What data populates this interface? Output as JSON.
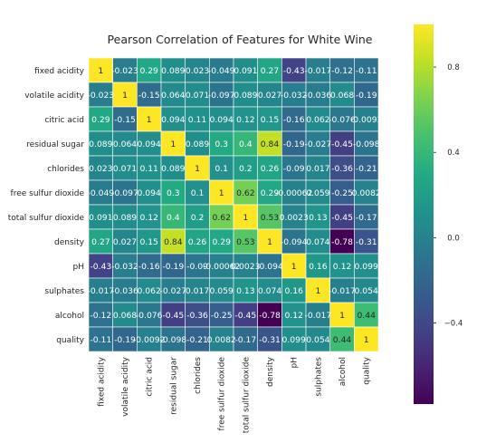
{
  "chart_data": {
    "type": "heatmap",
    "title": "Pearson Correlation of Features for White Wine",
    "labels": [
      "fixed acidity",
      "volatile acidity",
      "citric acid",
      "residual sugar",
      "chlorides",
      "free sulfur dioxide",
      "total sulfur dioxide",
      "density",
      "pH",
      "sulphates",
      "alcohol",
      "quality"
    ],
    "values": [
      [
        1,
        -0.023,
        0.29,
        0.089,
        0.023,
        -0.049,
        0.091,
        0.27,
        -0.43,
        -0.017,
        -0.12,
        -0.11
      ],
      [
        -0.023,
        1,
        -0.15,
        0.064,
        0.071,
        -0.097,
        0.089,
        0.027,
        -0.032,
        -0.036,
        0.068,
        -0.19
      ],
      [
        0.29,
        -0.15,
        1,
        0.094,
        0.11,
        0.094,
        0.12,
        0.15,
        -0.16,
        0.062,
        -0.076,
        -0.0092
      ],
      [
        0.089,
        0.064,
        0.094,
        1,
        0.089,
        0.3,
        0.4,
        0.84,
        -0.19,
        -0.027,
        -0.45,
        -0.098
      ],
      [
        0.023,
        0.071,
        0.11,
        0.089,
        1,
        0.1,
        0.2,
        0.26,
        -0.09,
        0.017,
        -0.36,
        -0.21
      ],
      [
        -0.049,
        -0.097,
        0.094,
        0.3,
        0.1,
        1,
        0.62,
        0.29,
        -0.00062,
        0.059,
        -0.25,
        0.0082
      ],
      [
        0.091,
        0.089,
        0.12,
        0.4,
        0.2,
        0.62,
        1,
        0.53,
        0.0023,
        0.13,
        -0.45,
        -0.17
      ],
      [
        0.27,
        0.027,
        0.15,
        0.84,
        0.26,
        0.29,
        0.53,
        1,
        -0.094,
        0.074,
        -0.78,
        -0.31
      ],
      [
        -0.43,
        -0.032,
        -0.16,
        -0.19,
        -0.09,
        -0.00062,
        0.0023,
        -0.094,
        1,
        0.16,
        0.12,
        0.099
      ],
      [
        -0.017,
        -0.036,
        0.062,
        -0.027,
        0.017,
        0.059,
        0.13,
        0.074,
        0.16,
        1,
        -0.017,
        0.054
      ],
      [
        -0.12,
        0.068,
        -0.076,
        -0.45,
        -0.36,
        -0.25,
        -0.45,
        -0.78,
        0.12,
        -0.017,
        1,
        0.44
      ],
      [
        -0.11,
        -0.19,
        -0.0092,
        -0.098,
        -0.21,
        0.0082,
        -0.17,
        -0.31,
        0.099,
        0.054,
        0.44,
        1
      ]
    ],
    "cell_text": [
      [
        "1",
        "-0.023",
        "0.29",
        "0.089",
        "0.023",
        "-0.049",
        "0.091",
        "0.27",
        "-0.43",
        "-0.017",
        "-0.12",
        "-0.11"
      ],
      [
        "-0.023",
        "1",
        "-0.15",
        "0.064",
        "0.071",
        "-0.097",
        "0.089",
        "0.027",
        "-0.032",
        "-0.036",
        "0.068",
        "-0.19"
      ],
      [
        "0.29",
        "-0.15",
        "1",
        "0.094",
        "0.11",
        "0.094",
        "0.12",
        "0.15",
        "-0.16",
        "0.062",
        "-0.076",
        "-0.0092"
      ],
      [
        "0.089",
        "0.064",
        "0.094",
        "1",
        "0.089",
        "0.3",
        "0.4",
        "0.84",
        "-0.19",
        "-0.027",
        "-0.45",
        "-0.098"
      ],
      [
        "0.023",
        "0.071",
        "0.11",
        "0.089",
        "1",
        "0.1",
        "0.2",
        "0.26",
        "-0.09",
        "0.017",
        "-0.36",
        "-0.21"
      ],
      [
        "-0.049",
        "-0.097",
        "0.094",
        "0.3",
        "0.1",
        "1",
        "0.62",
        "0.29",
        "-0.00062",
        "0.059",
        "-0.25",
        "0.0082"
      ],
      [
        "0.091",
        "0.089",
        "0.12",
        "0.4",
        "0.2",
        "0.62",
        "1",
        "0.53",
        "0.0023",
        "0.13",
        "-0.45",
        "-0.17"
      ],
      [
        "0.27",
        "0.027",
        "0.15",
        "0.84",
        "0.26",
        "0.29",
        "0.53",
        "1",
        "-0.094",
        "0.074",
        "-0.78",
        "-0.31"
      ],
      [
        "-0.43",
        "-0.032",
        "-0.16",
        "-0.19",
        "-0.09",
        "-0.00062",
        "0.0023",
        "-0.094",
        "1",
        "0.16",
        "0.12",
        "0.099"
      ],
      [
        "-0.017",
        "-0.036",
        "0.062",
        "-0.027",
        "0.017",
        "0.059",
        "0.13",
        "0.074",
        "0.16",
        "1",
        "-0.017",
        "0.054"
      ],
      [
        "-0.12",
        "0.068",
        "-0.076",
        "-0.45",
        "-0.36",
        "-0.25",
        "-0.45",
        "-0.78",
        "0.12",
        "-0.017",
        "1",
        "0.44"
      ],
      [
        "-0.11",
        "-0.19",
        "-0.0092",
        "-0.098",
        "-0.21",
        "0.0082",
        "-0.17",
        "-0.31",
        "0.099",
        "0.054",
        "0.44",
        "1"
      ]
    ],
    "colormap": "viridis",
    "color_range": [
      -0.78,
      1
    ],
    "colorbar_ticks": [
      {
        "value": 0.8,
        "label": "0.8"
      },
      {
        "value": 0.4,
        "label": "0.4"
      },
      {
        "value": 0.0,
        "label": "0.0"
      },
      {
        "value": -0.4,
        "label": "−0.4"
      }
    ],
    "cell_border_color": "#ffffff",
    "annotate": true,
    "grid": false,
    "legend": "colorbar-right"
  }
}
